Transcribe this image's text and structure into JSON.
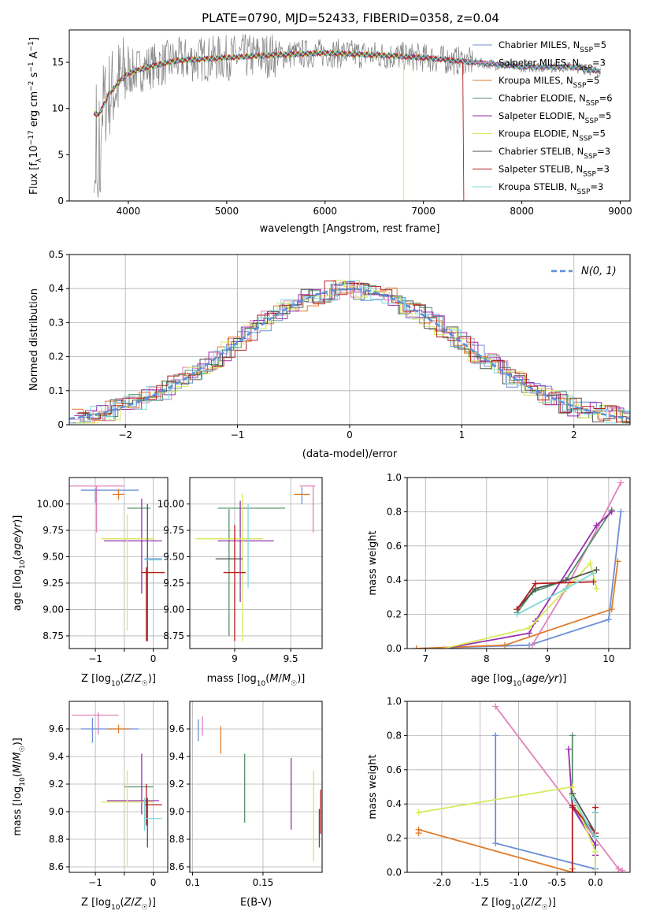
{
  "figure": {
    "title": "PLATE=0790, MJD=52433, FIBERID=0358, z=0.04"
  },
  "colors": {
    "Chabrier MILES": "#6b8fd6",
    "Salpeter MILES": "#e282b8",
    "Kroupa MILES": "#e07b2a",
    "Chabrier ELODIE": "#55906a",
    "Salpeter ELODIE": "#9a2fb0",
    "Kroupa ELODIE": "#d6ea5a",
    "Chabrier STELIB": "#505050",
    "Salpeter STELIB": "#b51d1d",
    "Kroupa STELIB": "#7dd8d8",
    "data": "#808080"
  },
  "legend_spectrum": [
    {
      "name": "Chabrier MILES",
      "nssp": "5"
    },
    {
      "name": "Salpeter MILES",
      "nssp": "3"
    },
    {
      "name": "Kroupa MILES",
      "nssp": "5"
    },
    {
      "name": "Chabrier ELODIE",
      "nssp": "6"
    },
    {
      "name": "Salpeter ELODIE",
      "nssp": "5"
    },
    {
      "name": "Kroupa ELODIE",
      "nssp": "5"
    },
    {
      "name": "Chabrier STELIB",
      "nssp": "3"
    },
    {
      "name": "Salpeter STELIB",
      "nssp": "3"
    },
    {
      "name": "Kroupa STELIB",
      "nssp": "3"
    }
  ],
  "chart_data": [
    {
      "id": "spectrum",
      "type": "line",
      "xlabel": "wavelength [Angstrom, rest frame]",
      "ylabel": "Flux [f_λ 10^-17 erg cm^-2 s^-1 A^-1]",
      "xlim": [
        3400,
        9100
      ],
      "ylim": [
        0,
        18.5
      ],
      "xticks": [
        4000,
        5000,
        6000,
        7000,
        8000,
        9000
      ],
      "yticks": [
        0,
        5,
        10,
        15
      ],
      "continuum": [
        [
          3650,
          9.5
        ],
        [
          3700,
          9.3
        ],
        [
          3800,
          11.5
        ],
        [
          3900,
          12.8
        ],
        [
          4000,
          13.8
        ],
        [
          4200,
          14.5
        ],
        [
          4500,
          15.2
        ],
        [
          5000,
          15.5
        ],
        [
          5500,
          15.8
        ],
        [
          6000,
          16.0
        ],
        [
          6500,
          15.8
        ],
        [
          7000,
          15.5
        ],
        [
          7500,
          15.0
        ],
        [
          8000,
          14.5
        ],
        [
          8500,
          14.5
        ],
        [
          8800,
          14.0
        ]
      ],
      "model_cutoffs": {
        "Salpeter STELIB": 7410,
        "Kroupa ELODIE": 6800
      }
    },
    {
      "id": "residuals",
      "type": "line",
      "xlabel": "(data-model)/error",
      "ylabel": "Normed distribution",
      "xlim": [
        -2.5,
        2.5
      ],
      "ylim": [
        0,
        0.5
      ],
      "xticks": [
        -2,
        -1,
        0,
        1,
        2
      ],
      "yticks": [
        0,
        0.1,
        0.2,
        0.3,
        0.4,
        0.5
      ],
      "gaussian_label": "N(0, 1)"
    },
    {
      "id": "age-vs-Z",
      "type": "scatter",
      "xlabel": "Z [log10(Z/Z☉)]",
      "ylabel": "age [log10(age/yr)]",
      "xlim": [
        -1.45,
        0.25
      ],
      "ylim": [
        8.63,
        10.25
      ],
      "xticks": [
        -1,
        -0.5,
        0
      ],
      "xticklabels": [
        "−1",
        "",
        "0"
      ],
      "yticks": [
        8.75,
        9.0,
        9.25,
        9.5,
        9.75,
        10.0
      ],
      "points": [
        {
          "m": "Salpeter MILES",
          "x": -1.0,
          "xe": 0.5,
          "y": 10.17,
          "ye": 0.0
        },
        {
          "m": "Salpeter MILES",
          "x": -0.98,
          "xe": 0.0,
          "y": 9.95,
          "ye": 0.22
        },
        {
          "m": "Chabrier MILES",
          "x": -0.75,
          "xe": 0.5,
          "y": 10.13,
          "ye": 0.0
        },
        {
          "m": "Chabrier MILES",
          "x": -1.0,
          "xe": 0.0,
          "y": 10.08,
          "ye": 0.07
        },
        {
          "m": "Kroupa MILES",
          "x": -0.6,
          "xe": 0.1,
          "y": 10.09,
          "ye": 0.05
        },
        {
          "m": "Chabrier ELODIE",
          "x": -0.25,
          "xe": 0.2,
          "y": 9.96,
          "ye": 0.0
        },
        {
          "m": "Salpeter ELODIE",
          "x": -0.35,
          "xe": 0.5,
          "y": 9.65,
          "ye": 0.0
        },
        {
          "m": "Salpeter ELODIE",
          "x": -0.2,
          "xe": 0.0,
          "y": 9.6,
          "ye": 0.45
        },
        {
          "m": "Kroupa ELODIE",
          "x": -0.45,
          "xe": 0.45,
          "y": 9.67,
          "ye": 0.0
        },
        {
          "m": "Kroupa ELODIE",
          "x": -0.45,
          "xe": 0.0,
          "y": 9.35,
          "ye": 0.55
        },
        {
          "m": "Chabrier STELIB",
          "x": -0.1,
          "xe": 0.0,
          "y": 9.35,
          "ye": 0.65
        },
        {
          "m": "Salpeter STELIB",
          "x": 0.0,
          "xe": 0.2,
          "y": 9.35,
          "ye": 0.0
        },
        {
          "m": "Salpeter STELIB",
          "x": -0.12,
          "xe": 0.0,
          "y": 9.05,
          "ye": 0.35
        },
        {
          "m": "Kroupa STELIB",
          "x": 0.0,
          "xe": 0.15,
          "y": 9.47,
          "ye": 0.0
        },
        {
          "m": "Chabrier MILES",
          "x": 0.0,
          "xe": 0.15,
          "y": 9.48,
          "ye": 0.0
        }
      ]
    },
    {
      "id": "age-vs-mass",
      "type": "scatter",
      "xlabel": "mass [log10(M/M☉)]",
      "ylabel": "",
      "xlim": [
        8.6,
        9.78
      ],
      "ylim": [
        8.63,
        10.25
      ],
      "xticks": [
        9.0,
        9.5
      ],
      "yticks": [
        8.75,
        9.0,
        9.25,
        9.5,
        9.75,
        10.0
      ],
      "points": [
        {
          "m": "Salpeter MILES",
          "x": 9.65,
          "xe": 0.07,
          "y": 10.17,
          "ye": 0.0
        },
        {
          "m": "Salpeter MILES",
          "x": 9.7,
          "xe": 0.0,
          "y": 9.95,
          "ye": 0.22
        },
        {
          "m": "Chabrier MILES",
          "x": 9.6,
          "xe": 0.0,
          "y": 10.08,
          "ye": 0.08
        },
        {
          "m": "Kroupa MILES",
          "x": 9.6,
          "xe": 0.07,
          "y": 10.09,
          "ye": 0.0
        },
        {
          "m": "Chabrier ELODIE",
          "x": 9.15,
          "xe": 0.3,
          "y": 9.96,
          "ye": 0.0
        },
        {
          "m": "Chabrier ELODIE",
          "x": 8.95,
          "xe": 0.0,
          "y": 9.35,
          "ye": 0.6
        },
        {
          "m": "Salpeter ELODIE",
          "x": 9.1,
          "xe": 0.25,
          "y": 9.65,
          "ye": 0.0
        },
        {
          "m": "Salpeter ELODIE",
          "x": 9.05,
          "xe": 0.0,
          "y": 9.55,
          "ye": 0.48
        },
        {
          "m": "Kroupa ELODIE",
          "x": 8.95,
          "xe": 0.3,
          "y": 9.67,
          "ye": 0.0
        },
        {
          "m": "Kroupa ELODIE",
          "x": 9.07,
          "xe": 0.0,
          "y": 9.4,
          "ye": 0.7
        },
        {
          "m": "Chabrier STELIB",
          "x": 8.95,
          "xe": 0.12,
          "y": 9.48,
          "ye": 0.0
        },
        {
          "m": "Salpeter STELIB",
          "x": 9.0,
          "xe": 0.1,
          "y": 9.35,
          "ye": 0.0
        },
        {
          "m": "Salpeter STELIB",
          "x": 9.0,
          "xe": 0.0,
          "y": 9.25,
          "ye": 0.55
        },
        {
          "m": "Kroupa STELIB",
          "x": 9.12,
          "xe": 0.0,
          "y": 9.6,
          "ye": 0.4
        }
      ]
    },
    {
      "id": "weight-vs-age",
      "type": "line",
      "xlabel": "age [log10(age/yr)]",
      "ylabel": "mass weight",
      "xlim": [
        6.7,
        10.35
      ],
      "ylim": [
        0,
        1.0
      ],
      "xticks": [
        7,
        8,
        9,
        10
      ],
      "yticks": [
        0,
        0.2,
        0.4,
        0.6,
        0.8,
        1.0
      ],
      "series": [
        {
          "m": "Chabrier MILES",
          "x": [
            6.85,
            8.7,
            10.0,
            10.2
          ],
          "y": [
            0.0,
            0.02,
            0.17,
            0.8
          ]
        },
        {
          "m": "Salpeter MILES",
          "x": [
            8.75,
            9.3,
            10.2
          ],
          "y": [
            0.02,
            0.35,
            0.97
          ]
        },
        {
          "m": "Kroupa MILES",
          "x": [
            6.85,
            8.3,
            10.05,
            10.15
          ],
          "y": [
            0.0,
            0.02,
            0.23,
            0.51
          ]
        },
        {
          "m": "Chabrier ELODIE",
          "x": [
            8.5,
            8.75,
            9.3,
            10.05
          ],
          "y": [
            0.21,
            0.33,
            0.4,
            0.81
          ]
        },
        {
          "m": "Salpeter ELODIE",
          "x": [
            7.3,
            8.7,
            8.8,
            9.8,
            10.05
          ],
          "y": [
            0.0,
            0.09,
            0.16,
            0.72,
            0.8
          ]
        },
        {
          "m": "Kroupa ELODIE",
          "x": [
            7.3,
            8.7,
            9.7,
            9.8
          ],
          "y": [
            0.0,
            0.12,
            0.5,
            0.35
          ]
        },
        {
          "m": "Chabrier STELIB",
          "x": [
            8.5,
            8.8,
            9.3,
            9.8
          ],
          "y": [
            0.23,
            0.35,
            0.4,
            0.46
          ]
        },
        {
          "m": "Salpeter STELIB",
          "x": [
            8.5,
            8.8,
            9.75
          ],
          "y": [
            0.23,
            0.38,
            0.39
          ]
        },
        {
          "m": "Kroupa STELIB",
          "x": [
            8.5,
            9.3,
            9.75
          ],
          "y": [
            0.2,
            0.35,
            0.44
          ]
        }
      ]
    },
    {
      "id": "mass-vs-Z",
      "type": "scatter",
      "xlabel": "Z [log10(Z/Z☉)]",
      "ylabel": "mass [log10(M/M☉)]",
      "xlim": [
        -1.45,
        0.25
      ],
      "ylim": [
        8.56,
        9.8
      ],
      "xticks": [
        -1,
        -0.5,
        0
      ],
      "xticklabels": [
        "−1",
        "",
        "0"
      ],
      "yticks": [
        8.6,
        8.8,
        9.0,
        9.2,
        9.4,
        9.6
      ],
      "points": [
        {
          "m": "Salpeter MILES",
          "x": -1.0,
          "xe": 0.4,
          "y": 9.7,
          "ye": 0.0
        },
        {
          "m": "Salpeter MILES",
          "x": -0.95,
          "xe": 0.0,
          "y": 9.64,
          "ye": 0.08
        },
        {
          "m": "Chabrier MILES",
          "x": -0.75,
          "xe": 0.5,
          "y": 9.6,
          "ye": 0.0
        },
        {
          "m": "Chabrier MILES",
          "x": -1.05,
          "xe": 0.0,
          "y": 9.59,
          "ye": 0.09
        },
        {
          "m": "Kroupa MILES",
          "x": -0.6,
          "xe": 0.2,
          "y": 9.6,
          "ye": 0.03
        },
        {
          "m": "Chabrier ELODIE",
          "x": -0.25,
          "xe": 0.25,
          "y": 9.18,
          "ye": 0.0
        },
        {
          "m": "Salpeter ELODIE",
          "x": -0.35,
          "xe": 0.45,
          "y": 9.08,
          "ye": 0.0
        },
        {
          "m": "Salpeter ELODIE",
          "x": -0.2,
          "xe": 0.0,
          "y": 9.2,
          "ye": 0.22
        },
        {
          "m": "Kroupa ELODIE",
          "x": -0.45,
          "xe": 0.45,
          "y": 9.07,
          "ye": 0.0
        },
        {
          "m": "Kroupa ELODIE",
          "x": -0.45,
          "xe": 0.0,
          "y": 8.95,
          "ye": 0.35
        },
        {
          "m": "Chabrier STELIB",
          "x": -0.1,
          "xe": 0.0,
          "y": 8.92,
          "ye": 0.18
        },
        {
          "m": "Salpeter STELIB",
          "x": 0.0,
          "xe": 0.15,
          "y": 9.05,
          "ye": 0.0
        },
        {
          "m": "Salpeter STELIB",
          "x": -0.12,
          "xe": 0.0,
          "y": 9.05,
          "ye": 0.15
        },
        {
          "m": "Kroupa STELIB",
          "x": 0.0,
          "xe": 0.15,
          "y": 8.95,
          "ye": 0.0
        },
        {
          "m": "Kroupa STELIB",
          "x": -0.15,
          "xe": 0.0,
          "y": 8.98,
          "ye": 0.12
        }
      ]
    },
    {
      "id": "mass-vs-ebv",
      "type": "scatter",
      "xlabel": "E(B-V)",
      "ylabel": "",
      "xlim": [
        0.098,
        0.192
      ],
      "ylim": [
        8.56,
        9.8
      ],
      "xticks": [
        0.1,
        0.15
      ],
      "yticks": [
        8.6,
        8.8,
        9.0,
        9.2,
        9.4,
        9.6
      ],
      "points": [
        {
          "m": "Chabrier MILES",
          "x": 0.104,
          "xe": 0.0,
          "y": 9.59,
          "ye": 0.08
        },
        {
          "m": "Salpeter MILES",
          "x": 0.107,
          "xe": 0.0,
          "y": 9.62,
          "ye": 0.07
        },
        {
          "m": "Kroupa MILES",
          "x": 0.12,
          "xe": 0.0,
          "y": 9.52,
          "ye": 0.1
        },
        {
          "m": "Chabrier ELODIE",
          "x": 0.137,
          "xe": 0.0,
          "y": 9.17,
          "ye": 0.25
        },
        {
          "m": "Salpeter ELODIE",
          "x": 0.17,
          "xe": 0.0,
          "y": 9.13,
          "ye": 0.26
        },
        {
          "m": "Kroupa ELODIE",
          "x": 0.186,
          "xe": 0.0,
          "y": 8.97,
          "ye": 0.33
        },
        {
          "m": "Salpeter STELIB",
          "x": 0.191,
          "xe": 0.0,
          "y": 9.0,
          "ye": 0.16
        },
        {
          "m": "Chabrier STELIB",
          "x": 0.19,
          "xe": 0.0,
          "y": 8.88,
          "ye": 0.14
        }
      ]
    },
    {
      "id": "weight-vs-Z",
      "type": "line",
      "xlabel": "Z [log10(Z/Z☉)]",
      "ylabel": "mass weight",
      "xlim": [
        -2.45,
        0.45
      ],
      "ylim": [
        0,
        1.0
      ],
      "xticks": [
        -2.0,
        -1.5,
        -1.0,
        -0.5,
        0.0
      ],
      "yticks": [
        0,
        0.2,
        0.4,
        0.6,
        0.8,
        1.0
      ],
      "series": [
        {
          "m": "Chabrier MILES",
          "x": [
            -1.3,
            -1.3,
            0.0,
            0.0
          ],
          "y": [
            0.8,
            0.17,
            0.02,
            0.0
          ]
        },
        {
          "m": "Salpeter MILES",
          "x": [
            -1.3,
            0.3,
            0.35
          ],
          "y": [
            0.97,
            0.02,
            0.01
          ]
        },
        {
          "m": "Kroupa MILES",
          "x": [
            -2.3,
            -2.3,
            -0.3,
            -0.3
          ],
          "y": [
            0.23,
            0.25,
            0.0,
            0.02
          ]
        },
        {
          "m": "Chabrier ELODIE",
          "x": [
            -0.3,
            -0.3,
            -0.3,
            0.0,
            0.0
          ],
          "y": [
            0.8,
            0.46,
            0.39,
            0.21,
            0.0
          ]
        },
        {
          "m": "Salpeter ELODIE",
          "x": [
            -0.35,
            -0.3,
            0.0,
            0.0,
            0.0
          ],
          "y": [
            0.72,
            0.38,
            0.16,
            0.1,
            0.0
          ]
        },
        {
          "m": "Kroupa ELODIE",
          "x": [
            -2.3,
            -0.3,
            -0.3,
            0.0,
            0.0
          ],
          "y": [
            0.35,
            0.5,
            0.45,
            0.12,
            0.0
          ]
        },
        {
          "m": "Chabrier STELIB",
          "x": [
            -0.3,
            0.0,
            0.0
          ],
          "y": [
            0.46,
            0.23,
            0.35
          ]
        },
        {
          "m": "Salpeter STELIB",
          "x": [
            -0.3,
            -0.3,
            0.0,
            0.0
          ],
          "y": [
            0.0,
            0.39,
            0.23,
            0.38
          ]
        },
        {
          "m": "Kroupa STELIB",
          "x": [
            -0.3,
            0.0,
            0.0
          ],
          "y": [
            0.44,
            0.2,
            0.35
          ]
        }
      ]
    }
  ]
}
